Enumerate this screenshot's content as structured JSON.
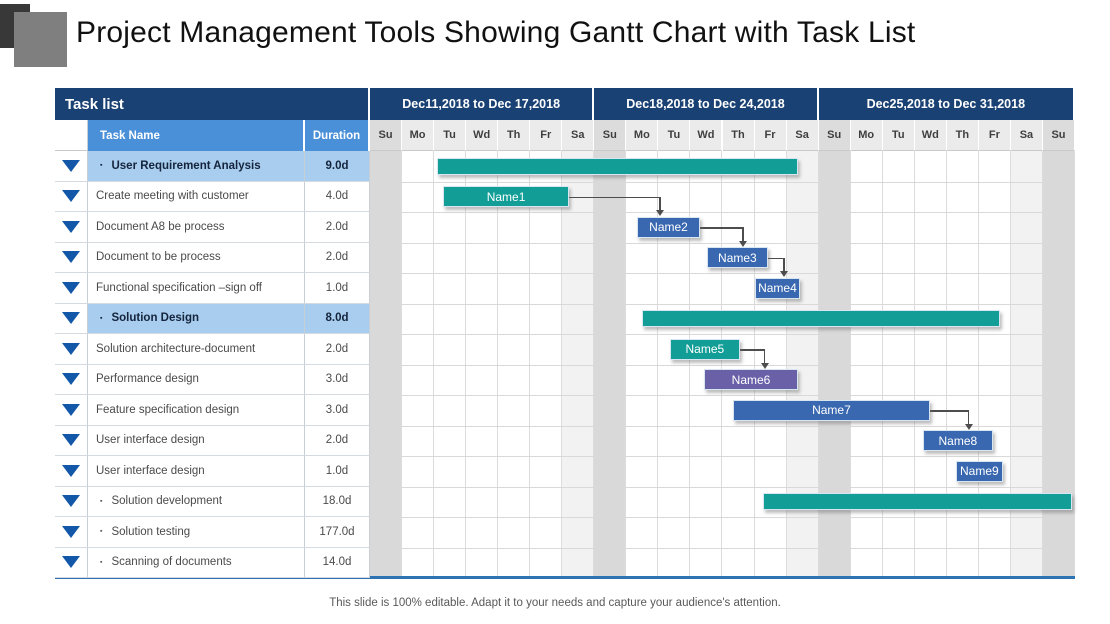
{
  "title": "Project Management Tools Showing Gantt Chart with Task List",
  "footer": "This slide is 100% editable. Adapt it to your needs and capture your audience's attention.",
  "colors": {
    "banner_navy": "#1a4173",
    "subheader_blue": "#4a90d9",
    "parent_row_blue": "#a9cdee",
    "teal": "#129e97",
    "blue": "#3968b0",
    "purple": "#6a60a8",
    "triangle_blue": "#1257a8",
    "weekend_sa": "#f2f2f2",
    "weekend_su": "#d9d9d9",
    "bottom_rule_blue": "#2e74b5",
    "connector_gray": "#4d4d4d"
  },
  "table": {
    "header_label": "Task list",
    "task_col_label": "Task Name",
    "duration_col_label": "Duration"
  },
  "chart_data": {
    "type": "gantt",
    "title": "Project Management Tools Showing Gantt Chart with Task List",
    "legend": "none",
    "grid": true,
    "weekend_shading": {
      "Sa": "#f2f2f2",
      "Su": "#d9d9d9"
    },
    "weeks": [
      {
        "label": "Dec11,2018 to Dec 17,2018",
        "days": [
          "Su",
          "Mo",
          "Tu",
          "Wd",
          "Th",
          "Fr",
          "Sa"
        ]
      },
      {
        "label": "Dec18,2018 to Dec 24,2018",
        "days": [
          "Su",
          "Mo",
          "Tu",
          "Wd",
          "Th",
          "Fr",
          "Sa"
        ]
      },
      {
        "label": "Dec25,2018 to Dec 31,2018",
        "days": [
          "Su",
          "Mo",
          "Tu",
          "Wd",
          "Th",
          "Fr",
          "Sa",
          "Su"
        ]
      }
    ],
    "day_axis_range": [
      0,
      22
    ],
    "tasks": [
      {
        "name": "User Requirement Analysis",
        "duration": "9.0d",
        "style": "summary",
        "bar": {
          "label": "",
          "color": "teal",
          "start_day": 2.1,
          "end_day": 13.35
        }
      },
      {
        "name": "Create meeting with customer",
        "duration": "4.0d",
        "style": "child",
        "bar": {
          "label": "Name1",
          "color": "teal",
          "start_day": 2.28,
          "end_day": 6.21
        }
      },
      {
        "name": "Document A8 be process",
        "duration": "2.0d",
        "style": "child",
        "bar": {
          "label": "Name2",
          "color": "blue",
          "start_day": 8.33,
          "end_day": 10.3
        }
      },
      {
        "name": "Document to be process",
        "duration": "2.0d",
        "style": "child",
        "bar": {
          "label": "Name3",
          "color": "blue",
          "start_day": 10.51,
          "end_day": 12.42
        }
      },
      {
        "name": "Functional specification –sign off",
        "duration": "1.0d",
        "style": "child",
        "bar": {
          "label": "Name4",
          "color": "blue",
          "start_day": 12.01,
          "end_day": 13.42
        }
      },
      {
        "name": "Solution Design",
        "duration": "8.0d",
        "style": "summary",
        "bar": {
          "label": "",
          "color": "teal",
          "start_day": 8.49,
          "end_day": 19.66
        }
      },
      {
        "name": "Solution architecture-document",
        "duration": "2.0d",
        "style": "child",
        "bar": {
          "label": "Name5",
          "color": "teal",
          "start_day": 9.36,
          "end_day": 11.54
        }
      },
      {
        "name": "Performance design",
        "duration": "3.0d",
        "style": "child",
        "bar": {
          "label": "Name6",
          "color": "purple",
          "start_day": 10.42,
          "end_day": 13.36
        }
      },
      {
        "name": "Feature specification design",
        "duration": "3.0d",
        "style": "child",
        "bar": {
          "label": "Name7",
          "color": "blue",
          "start_day": 11.33,
          "end_day": 17.47
        }
      },
      {
        "name": "User interface design",
        "duration": "2.0d",
        "style": "child",
        "bar": {
          "label": "Name8",
          "color": "blue",
          "start_day": 17.25,
          "end_day": 19.44
        }
      },
      {
        "name": "User interface design",
        "duration": "1.0d",
        "style": "child",
        "bar": {
          "label": "Name9",
          "color": "blue",
          "start_day": 18.28,
          "end_day": 19.75
        }
      },
      {
        "name": "Solution development",
        "duration": "18.0d",
        "style": "bulleted",
        "bar": {
          "label": "",
          "color": "teal",
          "start_day": 12.26,
          "end_day": 21.9
        }
      },
      {
        "name": "Solution testing",
        "duration": "177.0d",
        "style": "bulleted",
        "bar": null
      },
      {
        "name": "Scanning of documents",
        "duration": "14.0d",
        "style": "bulleted",
        "bar": null
      }
    ],
    "dependencies": [
      {
        "from_task": 1,
        "to_task": 2,
        "elbow_day": 9.02
      },
      {
        "from_task": 2,
        "to_task": 3,
        "elbow_day": 11.61
      },
      {
        "from_task": 3,
        "to_task": 4,
        "elbow_day": 12.89
      },
      {
        "from_task": 6,
        "to_task": 7,
        "elbow_day": 12.29
      },
      {
        "from_task": 8,
        "to_task": 9,
        "elbow_day": 18.66
      }
    ]
  }
}
